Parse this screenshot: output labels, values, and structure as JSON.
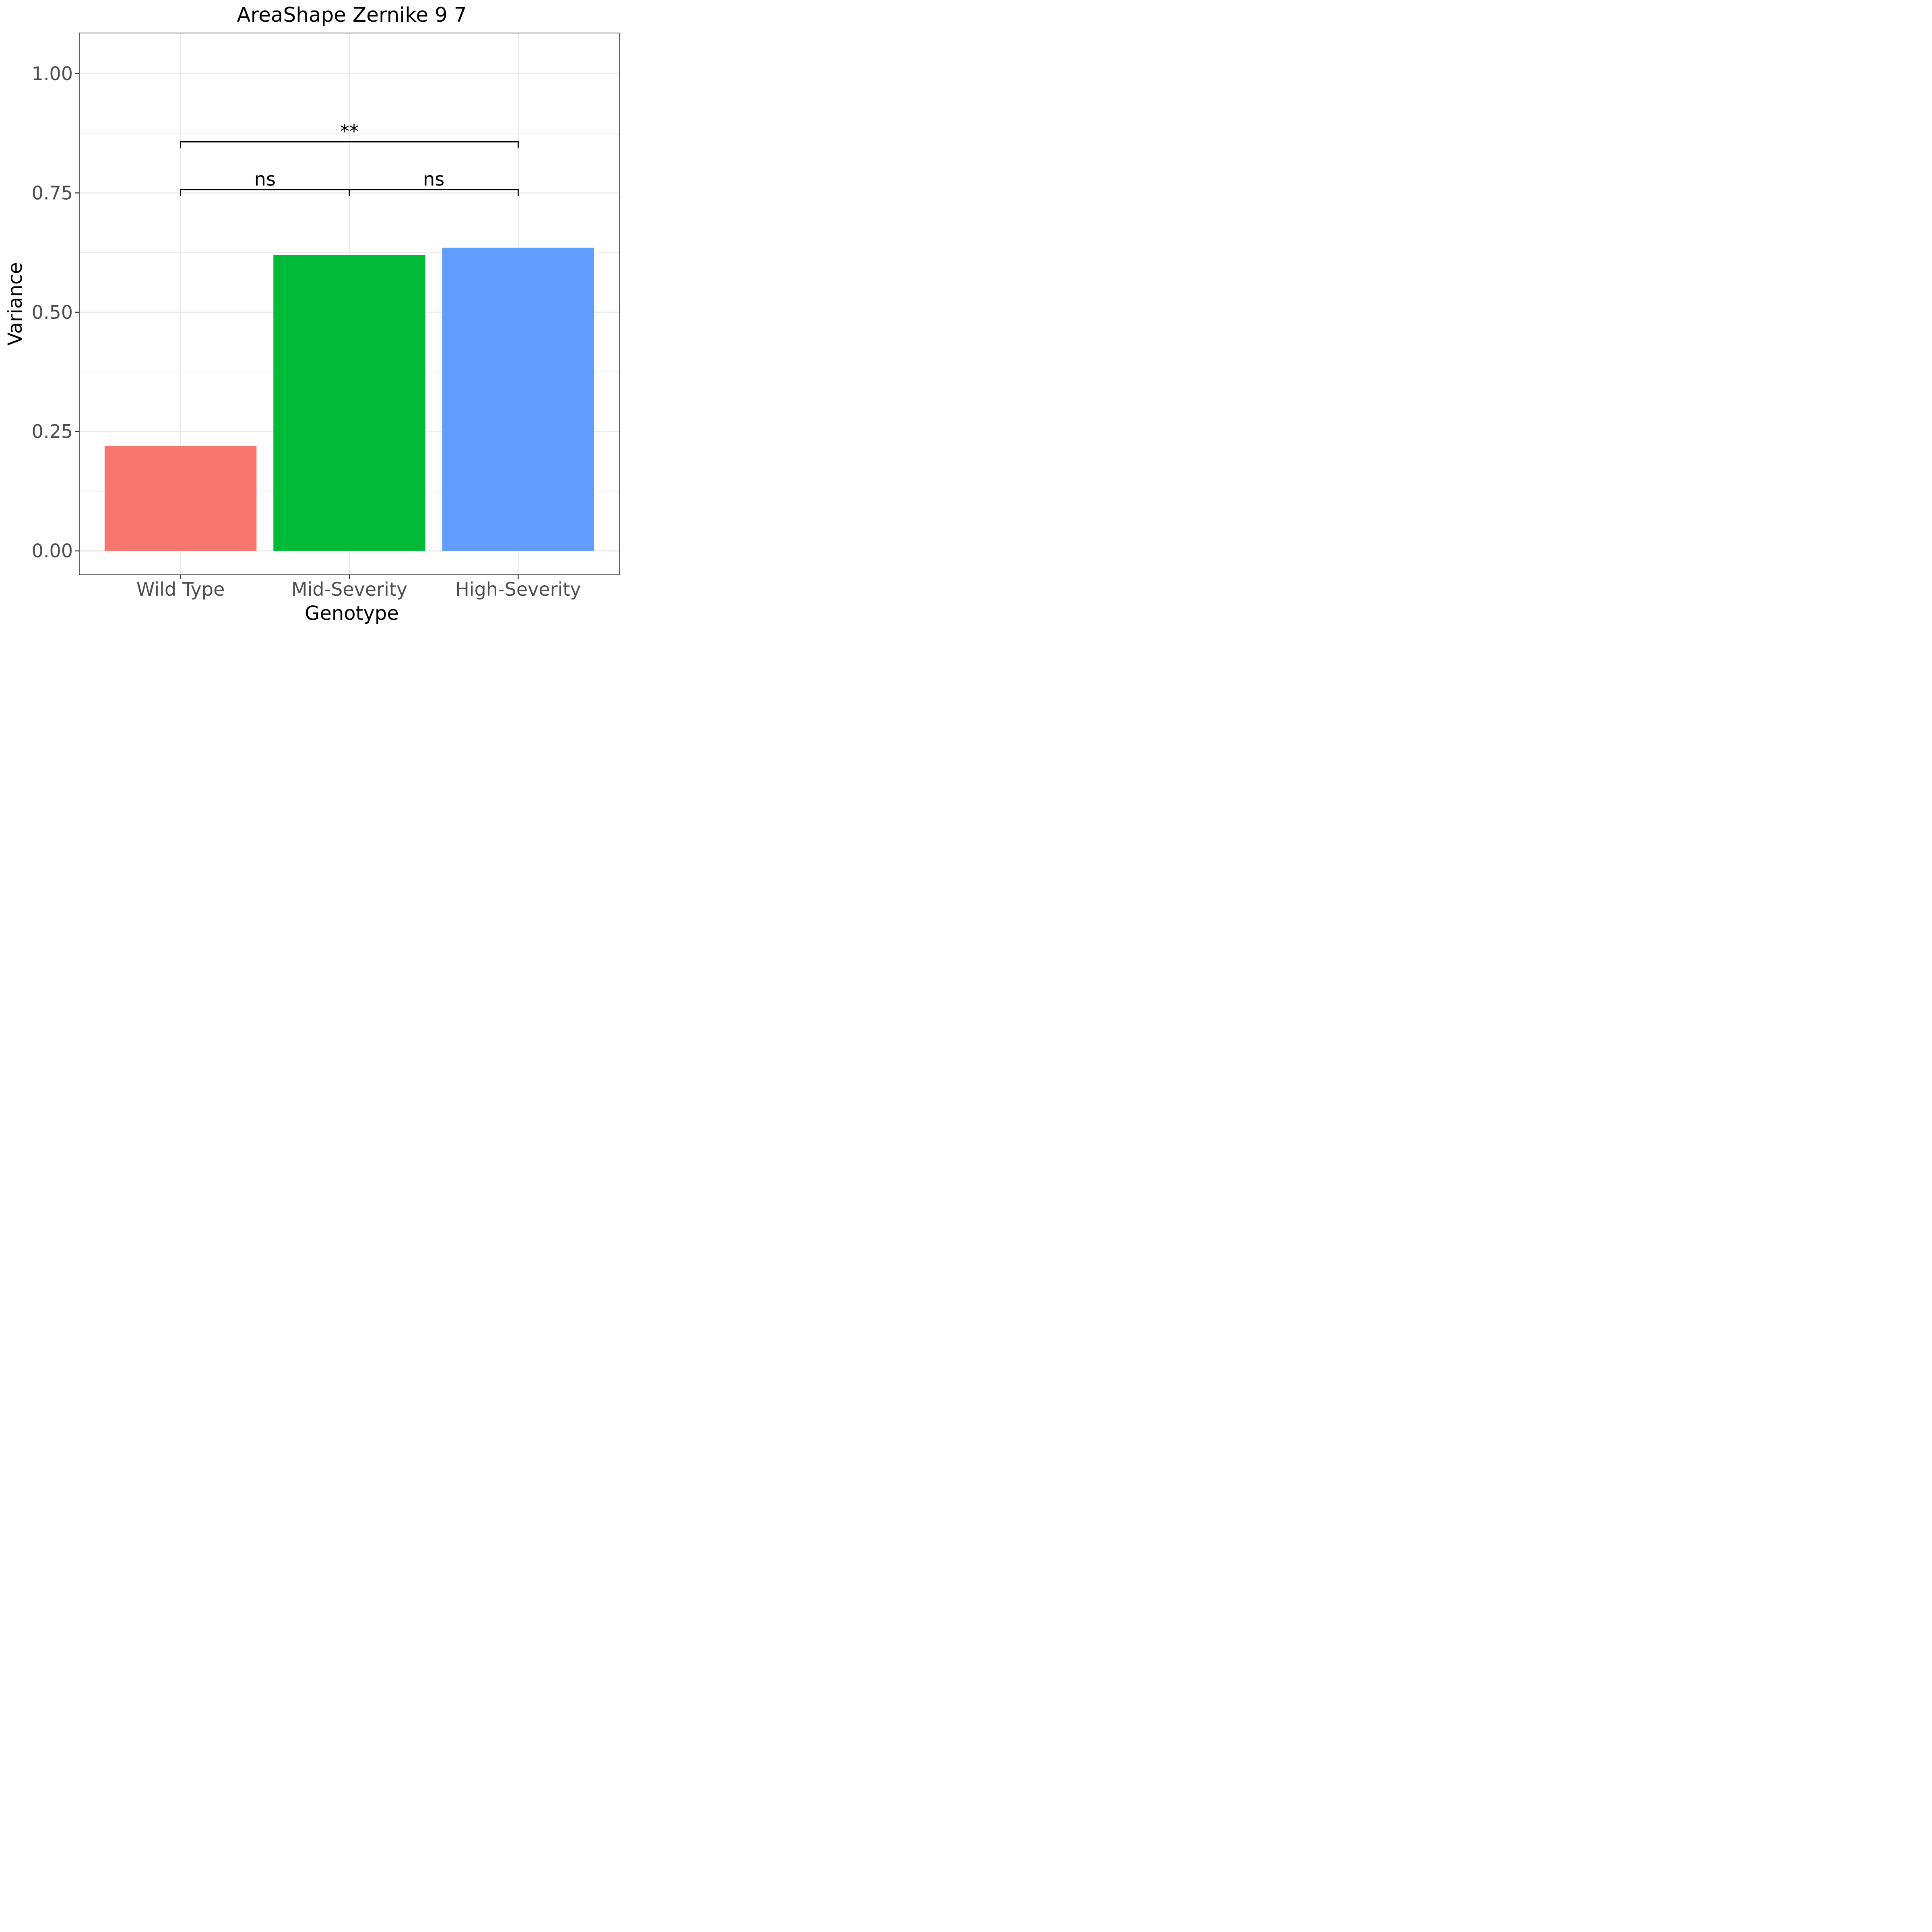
{
  "chart_data": {
    "type": "bar",
    "title": "AreaShape Zernike 9 7",
    "xlabel": "Genotype",
    "ylabel": "Variance",
    "categories": [
      "Wild Type",
      "Mid-Severity",
      "High-Severity"
    ],
    "values": [
      0.22,
      0.62,
      0.635
    ],
    "colors": [
      "#F8766D",
      "#00BA38",
      "#619CFF"
    ],
    "ylim": [
      -0.05,
      1.085
    ],
    "yticks": [
      0,
      0.25,
      0.5,
      0.75,
      1
    ],
    "ytick_labels": [
      "0.00",
      "0.25",
      "0.50",
      "0.75",
      "1.00"
    ],
    "grid": true,
    "significance": [
      {
        "from": 0,
        "to": 1,
        "y": 0.757,
        "label": "ns"
      },
      {
        "from": 1,
        "to": 2,
        "y": 0.757,
        "label": "ns"
      },
      {
        "from": 0,
        "to": 2,
        "y": 0.857,
        "label": "**"
      }
    ]
  }
}
